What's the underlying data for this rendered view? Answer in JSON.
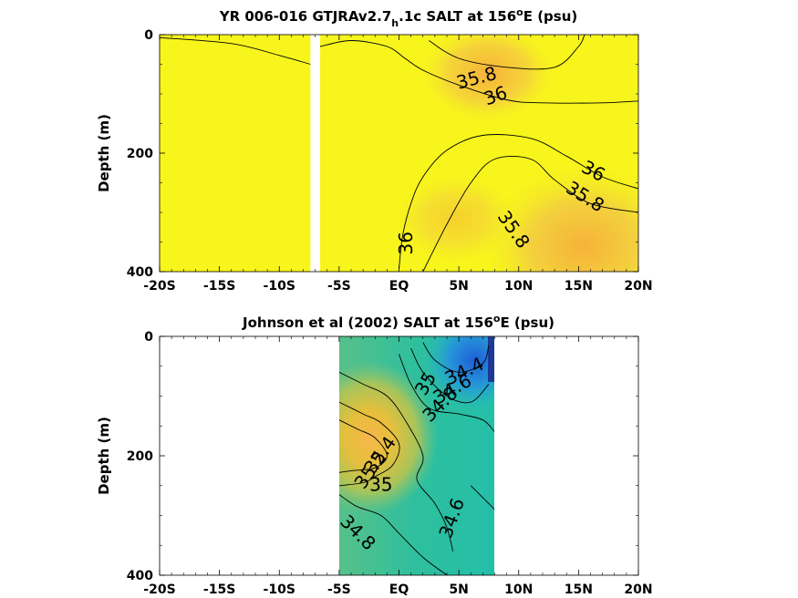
{
  "chart_data": [
    {
      "type": "heatmap",
      "title_main": "YR 006-016 GTJRAv2.7",
      "title_sub": "h",
      "title_mid": ".1c SALT at 156",
      "title_sup": "o",
      "title_end": "E (psu)",
      "ylabel": "Depth (m)",
      "xlim": [
        -20,
        20
      ],
      "ylim": [
        0,
        400
      ],
      "x_ticks": [
        -20,
        -15,
        -10,
        -5,
        0,
        5,
        10,
        15,
        20
      ],
      "x_tick_labels": [
        "-20S",
        "-15S",
        "-10S",
        "-5S",
        "EQ",
        "5N",
        "10N",
        "15N",
        "20N"
      ],
      "y_ticks": [
        0,
        200,
        400
      ],
      "y_tick_labels": [
        "0",
        "200",
        "400"
      ],
      "gap_x": [
        -7.4,
        -6.6
      ],
      "contour_labels": [
        {
          "text": "35.8",
          "x": 6.5,
          "y": 75,
          "rotate": -15
        },
        {
          "text": "36",
          "x": 8.1,
          "y": 105,
          "rotate": -20
        },
        {
          "text": "36",
          "x": 16.2,
          "y": 232,
          "rotate": 28
        },
        {
          "text": "35.8",
          "x": 15.5,
          "y": 275,
          "rotate": 32
        },
        {
          "text": "35.8",
          "x": 9.5,
          "y": 330,
          "rotate": 55
        },
        {
          "text": "36",
          "x": 0.7,
          "y": 352,
          "rotate": -90
        }
      ],
      "contours": [
        [
          [
            -20,
            5
          ],
          [
            -14,
            15
          ],
          [
            -10,
            35
          ],
          [
            -7.4,
            50
          ]
        ],
        [
          [
            -6.6,
            20
          ],
          [
            -4,
            10
          ],
          [
            -1,
            20
          ],
          [
            0.5,
            40
          ],
          [
            2,
            60
          ],
          [
            5,
            85
          ],
          [
            9,
            110
          ],
          [
            12,
            115
          ],
          [
            17,
            115
          ],
          [
            20,
            112
          ]
        ],
        [
          [
            2.5,
            10
          ],
          [
            5,
            40
          ],
          [
            9,
            55
          ],
          [
            13,
            55
          ],
          [
            15,
            20
          ],
          [
            15.5,
            0
          ]
        ],
        [
          [
            0,
            395
          ],
          [
            0.3,
            340
          ],
          [
            1,
            285
          ],
          [
            2,
            240
          ],
          [
            4,
            195
          ],
          [
            7,
            170
          ],
          [
            11,
            175
          ],
          [
            14,
            205
          ],
          [
            17,
            240
          ],
          [
            20,
            260
          ]
        ],
        [
          [
            2,
            400
          ],
          [
            4,
            320
          ],
          [
            6,
            250
          ],
          [
            8,
            210
          ],
          [
            11,
            210
          ],
          [
            13,
            245
          ],
          [
            16,
            285
          ],
          [
            20,
            300
          ]
        ]
      ]
    },
    {
      "type": "heatmap",
      "title_main": "Johnson et al (2002) SALT at 156",
      "title_sup": "o",
      "title_end": "E (psu)",
      "ylabel": "Depth (m)",
      "xlim": [
        -20,
        20
      ],
      "ylim": [
        0,
        400
      ],
      "x_ticks": [
        -20,
        -15,
        -10,
        -5,
        0,
        5,
        10,
        15,
        20
      ],
      "x_tick_labels": [
        "-20S",
        "-15S",
        "-10S",
        "-5S",
        "EQ",
        "5N",
        "10N",
        "15N",
        "20N"
      ],
      "y_ticks": [
        0,
        200,
        400
      ],
      "y_tick_labels": [
        "0",
        "200",
        "400"
      ],
      "data_x": [
        -5,
        8
      ],
      "contour_labels": [
        {
          "text": "34.4",
          "x": 5.5,
          "y": 60,
          "rotate": -25
        },
        {
          "text": "34.6",
          "x": 4.5,
          "y": 90,
          "rotate": -30
        },
        {
          "text": "34.8",
          "x": 3.5,
          "y": 115,
          "rotate": -45
        },
        {
          "text": "35",
          "x": 2.3,
          "y": 80,
          "rotate": -60
        },
        {
          "text": "35.4",
          "x": -1.5,
          "y": 200,
          "rotate": -55
        },
        {
          "text": "35.2",
          "x": -2.3,
          "y": 225,
          "rotate": -55
        },
        {
          "text": "35",
          "x": -1.5,
          "y": 250,
          "rotate": 0
        },
        {
          "text": "34.6",
          "x": 4.5,
          "y": 305,
          "rotate": -70
        },
        {
          "text": "34.8",
          "x": -3.5,
          "y": 330,
          "rotate": 45
        }
      ],
      "contours": [
        [
          [
            2,
            10
          ],
          [
            3,
            40
          ],
          [
            5,
            60
          ],
          [
            7,
            45
          ],
          [
            7.5,
            15
          ]
        ],
        [
          [
            1,
            20
          ],
          [
            2,
            60
          ],
          [
            4,
            100
          ],
          [
            6,
            110
          ],
          [
            7.5,
            80
          ]
        ],
        [
          [
            0,
            30
          ],
          [
            1,
            80
          ],
          [
            2.5,
            120
          ],
          [
            5,
            130
          ],
          [
            7,
            140
          ],
          [
            8,
            160
          ]
        ],
        [
          [
            -5,
            60
          ],
          [
            -3,
            80
          ],
          [
            -1,
            100
          ],
          [
            0.5,
            140
          ],
          [
            2,
            200
          ],
          [
            1.5,
            240
          ],
          [
            3,
            280
          ],
          [
            4,
            320
          ],
          [
            4.5,
            360
          ]
        ],
        [
          [
            -5,
            110
          ],
          [
            -3,
            130
          ],
          [
            -1.5,
            145
          ],
          [
            0,
            180
          ],
          [
            -0.5,
            215
          ],
          [
            -2,
            235
          ],
          [
            -3,
            245
          ],
          [
            -5,
            250
          ]
        ],
        [
          [
            -5,
            140
          ],
          [
            -3.5,
            155
          ],
          [
            -2,
            170
          ],
          [
            -1,
            200
          ],
          [
            -2,
            220
          ],
          [
            -4,
            225
          ],
          [
            -5,
            228
          ]
        ],
        [
          [
            -5,
            265
          ],
          [
            -3.5,
            285
          ],
          [
            -1.5,
            300
          ],
          [
            0,
            330
          ],
          [
            2,
            370
          ],
          [
            4,
            400
          ]
        ],
        [
          [
            6,
            250
          ],
          [
            7,
            270
          ],
          [
            8,
            290
          ]
        ]
      ]
    }
  ]
}
